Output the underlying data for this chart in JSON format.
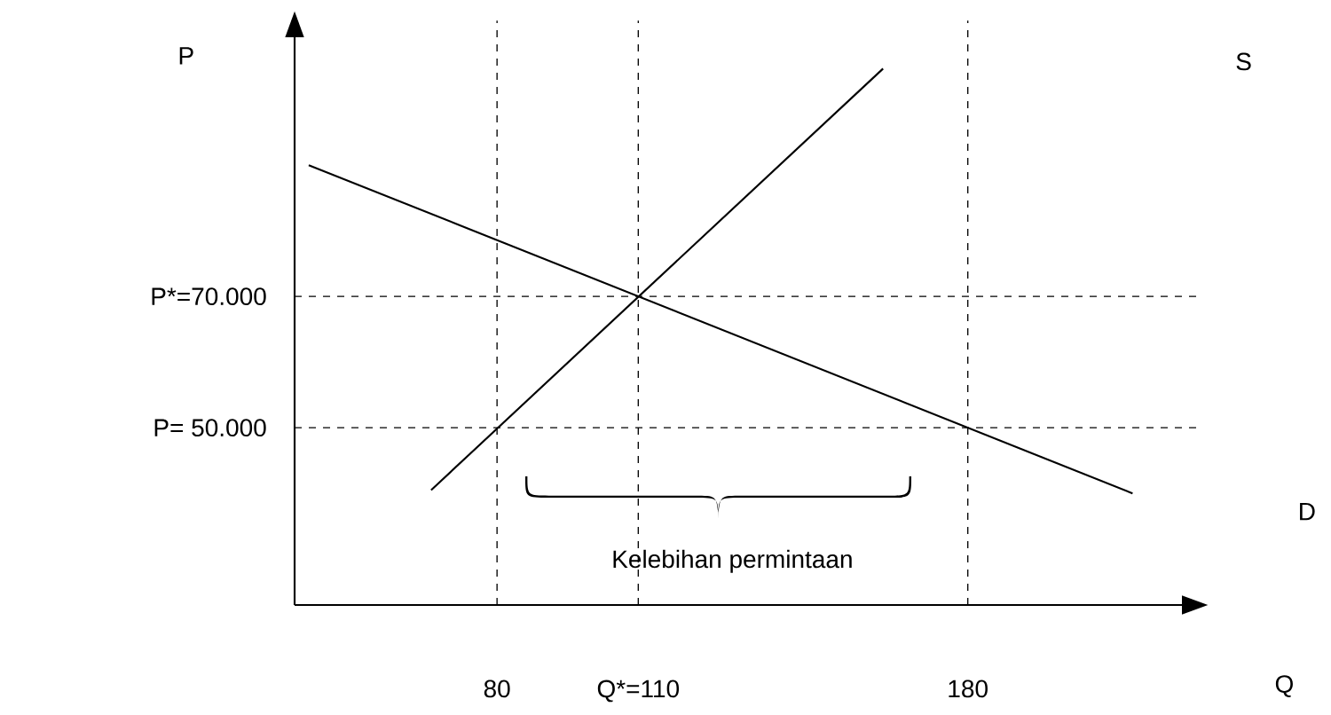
{
  "chart_data": {
    "type": "line",
    "xlabel": "Q",
    "ylabel": "P",
    "xlim": [
      37,
      229
    ],
    "ylim": [
      23000,
      112000
    ],
    "xticks": [
      80,
      {
        "value": 110,
        "label": "Q*=110"
      },
      180
    ],
    "yticks": [
      {
        "value": 50000,
        "label": "P= 50.000"
      },
      {
        "value": 70000,
        "label": "P*=70.000"
      }
    ],
    "series": [
      {
        "name": "S",
        "color": "#000000",
        "x": [
          66,
          162
        ],
        "values": [
          40500,
          104700
        ]
      },
      {
        "name": "D",
        "color": "#000000",
        "x": [
          40,
          215
        ],
        "values": [
          90000,
          40000
        ]
      }
    ],
    "ref_lines": [
      {
        "axis": "y",
        "value": 70000,
        "line_style": "dashed"
      },
      {
        "axis": "y",
        "value": 50000,
        "line_style": "dashed"
      },
      {
        "axis": "x",
        "value": 80,
        "line_style": "dashed"
      },
      {
        "axis": "x",
        "value": 110,
        "line_style": "dashed"
      },
      {
        "axis": "x",
        "value": 180,
        "line_style": "dashed"
      }
    ],
    "annotations": [
      "Kelebihan permintaan"
    ],
    "grid": false,
    "marker": "none",
    "line_style": "solid"
  }
}
